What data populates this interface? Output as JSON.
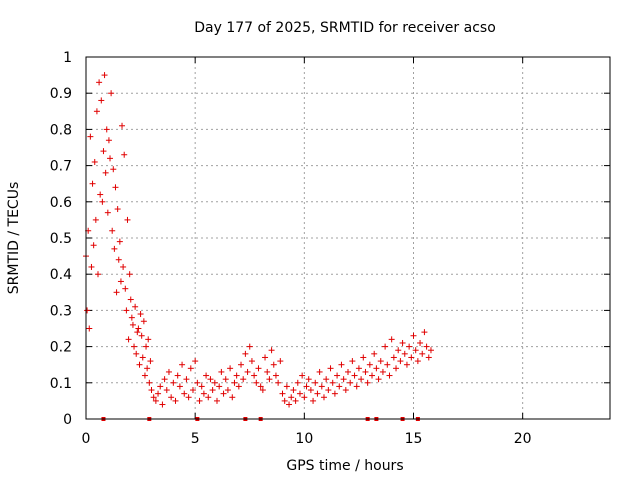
{
  "chart_data": {
    "type": "scatter",
    "title": "Day 177 of 2025, SRMTID for receiver acso",
    "xlabel": "GPS time / hours",
    "ylabel": "SRMTID / TECUs",
    "xlim": [
      0,
      24
    ],
    "ylim": [
      0,
      1
    ],
    "xticks": [
      0,
      5,
      10,
      15,
      20
    ],
    "xtick_labels": [
      "0",
      "5",
      "10",
      "15",
      "20"
    ],
    "yticks": [
      0,
      0.1,
      0.2,
      0.3,
      0.4,
      0.5,
      0.6,
      0.7,
      0.8,
      0.9,
      1
    ],
    "ytick_labels": [
      "0",
      "0.1",
      "0.2",
      "0.3",
      "0.4",
      "0.5",
      "0.6",
      "0.7",
      "0.8",
      "0.9",
      "1"
    ],
    "grid": true,
    "marker": "+",
    "color": "#e00000",
    "series": [
      {
        "name": "SRMTID",
        "x": [
          0.0,
          0.05,
          0.1,
          0.15,
          0.2,
          0.25,
          0.3,
          0.35,
          0.4,
          0.45,
          0.5,
          0.55,
          0.6,
          0.65,
          0.7,
          0.75,
          0.8,
          0.85,
          0.9,
          0.95,
          1.0,
          1.05,
          1.1,
          1.15,
          1.2,
          1.25,
          1.3,
          1.35,
          1.4,
          1.45,
          1.5,
          1.55,
          1.6,
          1.65,
          1.7,
          1.75,
          1.8,
          1.85,
          1.9,
          1.95,
          2.0,
          2.05,
          2.1,
          2.15,
          2.2,
          2.25,
          2.3,
          2.35,
          2.4,
          2.45,
          2.5,
          2.55,
          2.6,
          2.65,
          2.7,
          2.75,
          2.8,
          2.85,
          2.9,
          2.95,
          3.0,
          3.1,
          3.2,
          3.3,
          3.4,
          3.5,
          3.6,
          3.7,
          3.8,
          3.9,
          4.0,
          4.1,
          4.2,
          4.3,
          4.4,
          4.5,
          4.6,
          4.7,
          4.8,
          4.9,
          5.0,
          5.1,
          5.2,
          5.3,
          5.4,
          5.5,
          5.6,
          5.7,
          5.8,
          5.9,
          6.0,
          6.1,
          6.2,
          6.3,
          6.4,
          6.5,
          6.6,
          6.7,
          6.8,
          6.9,
          7.0,
          7.1,
          7.2,
          7.3,
          7.4,
          7.5,
          7.6,
          7.7,
          7.8,
          7.9,
          8.0,
          8.1,
          8.2,
          8.3,
          8.4,
          8.5,
          8.6,
          8.7,
          8.8,
          8.9,
          9.0,
          9.1,
          9.2,
          9.3,
          9.4,
          9.5,
          9.6,
          9.7,
          9.8,
          9.9,
          10.0,
          10.1,
          10.2,
          10.3,
          10.4,
          10.5,
          10.6,
          10.7,
          10.8,
          10.9,
          11.0,
          11.1,
          11.2,
          11.3,
          11.4,
          11.5,
          11.6,
          11.7,
          11.8,
          11.9,
          12.0,
          12.1,
          12.2,
          12.3,
          12.4,
          12.5,
          12.6,
          12.7,
          12.8,
          12.9,
          13.0,
          13.1,
          13.2,
          13.3,
          13.4,
          13.5,
          13.6,
          13.7,
          13.8,
          13.9,
          14.0,
          14.1,
          14.2,
          14.3,
          14.4,
          14.5,
          14.6,
          14.7,
          14.8,
          14.9,
          15.0,
          15.1,
          15.2,
          15.3,
          15.4,
          15.5,
          15.6,
          15.7,
          15.8
        ],
        "y": [
          0.45,
          0.3,
          0.52,
          0.25,
          0.78,
          0.42,
          0.65,
          0.48,
          0.71,
          0.55,
          0.85,
          0.4,
          0.93,
          0.62,
          0.88,
          0.6,
          0.74,
          0.95,
          0.68,
          0.8,
          0.57,
          0.77,
          0.72,
          0.9,
          0.52,
          0.69,
          0.47,
          0.64,
          0.35,
          0.58,
          0.44,
          0.49,
          0.38,
          0.81,
          0.42,
          0.73,
          0.36,
          0.3,
          0.55,
          0.22,
          0.4,
          0.33,
          0.28,
          0.26,
          0.2,
          0.31,
          0.18,
          0.24,
          0.25,
          0.15,
          0.29,
          0.23,
          0.17,
          0.27,
          0.12,
          0.2,
          0.14,
          0.22,
          0.1,
          0.16,
          0.08,
          0.06,
          0.05,
          0.07,
          0.09,
          0.04,
          0.11,
          0.08,
          0.13,
          0.06,
          0.1,
          0.05,
          0.12,
          0.09,
          0.15,
          0.07,
          0.11,
          0.06,
          0.14,
          0.08,
          0.16,
          0.1,
          0.05,
          0.09,
          0.07,
          0.12,
          0.06,
          0.11,
          0.08,
          0.1,
          0.05,
          0.09,
          0.13,
          0.07,
          0.11,
          0.08,
          0.14,
          0.06,
          0.1,
          0.12,
          0.09,
          0.15,
          0.11,
          0.18,
          0.13,
          0.2,
          0.16,
          0.12,
          0.1,
          0.14,
          0.09,
          0.08,
          0.17,
          0.13,
          0.11,
          0.19,
          0.15,
          0.12,
          0.1,
          0.16,
          0.07,
          0.05,
          0.09,
          0.04,
          0.06,
          0.08,
          0.05,
          0.1,
          0.07,
          0.12,
          0.06,
          0.09,
          0.11,
          0.08,
          0.05,
          0.1,
          0.07,
          0.13,
          0.09,
          0.06,
          0.11,
          0.08,
          0.14,
          0.1,
          0.07,
          0.12,
          0.09,
          0.15,
          0.11,
          0.08,
          0.13,
          0.1,
          0.16,
          0.12,
          0.09,
          0.14,
          0.11,
          0.17,
          0.13,
          0.1,
          0.15,
          0.12,
          0.18,
          0.14,
          0.11,
          0.16,
          0.13,
          0.2,
          0.15,
          0.12,
          0.22,
          0.17,
          0.14,
          0.19,
          0.16,
          0.21,
          0.18,
          0.15,
          0.2,
          0.17,
          0.23,
          0.19,
          0.16,
          0.21,
          0.18,
          0.24,
          0.2,
          0.17,
          0.19
        ]
      }
    ],
    "gap_markers_x": [
      0.8,
      2.9,
      5.1,
      7.3,
      8.0,
      12.9,
      13.3,
      14.5,
      15.2
    ]
  }
}
